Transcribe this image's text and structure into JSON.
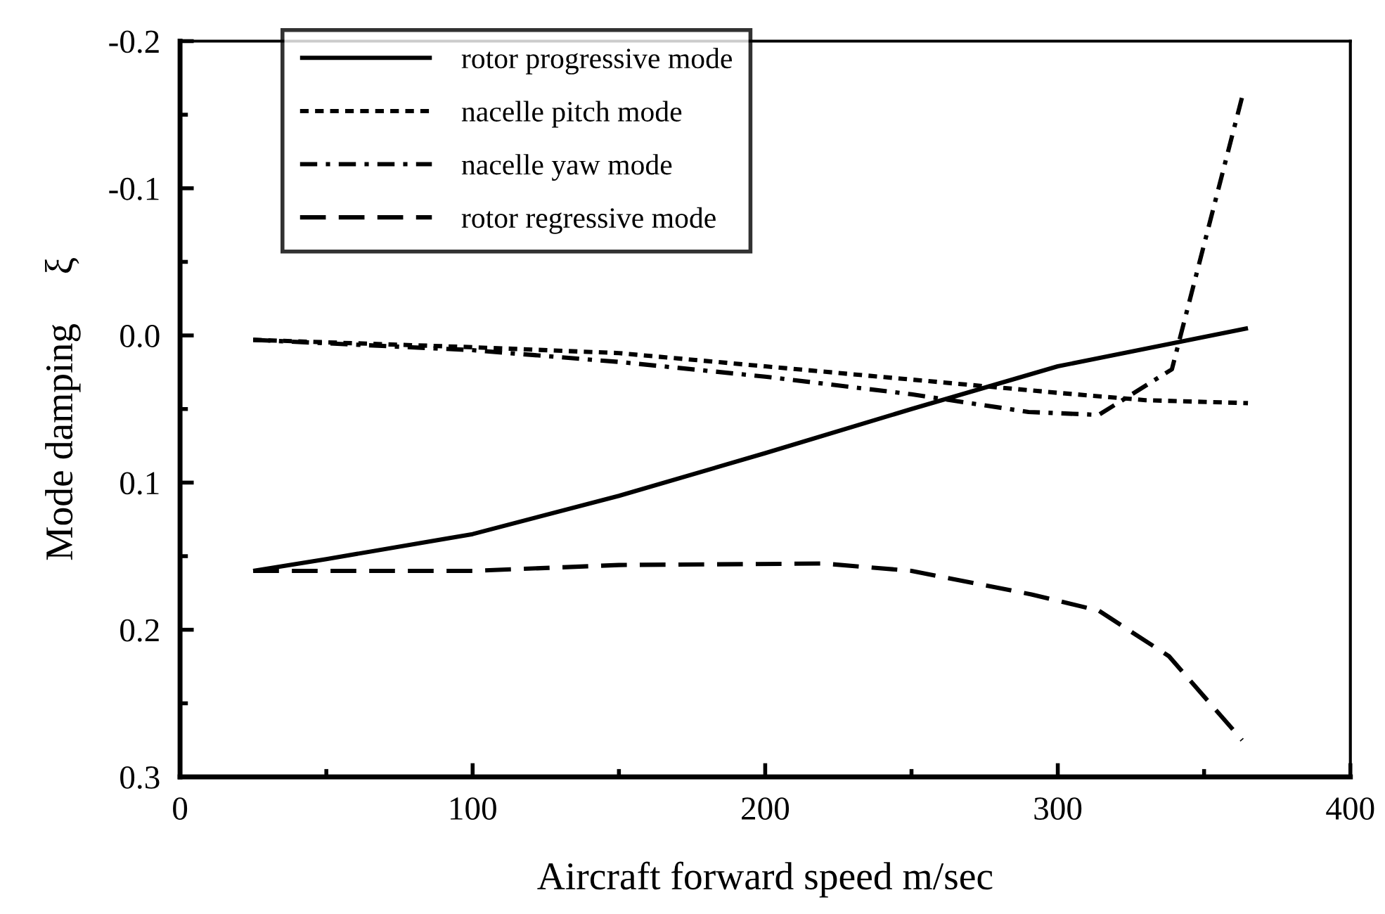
{
  "chart_data": {
    "type": "line",
    "xlabel": "Aircraft forward speed m/sec",
    "ylabel": "Mode damping     ξ",
    "xlim": [
      0,
      400
    ],
    "ylim": [
      0.3,
      -0.2
    ],
    "xticks": [
      0,
      {
        "value": 50,
        "label": null
      },
      100,
      {
        "value": 150,
        "label": null
      },
      200,
      {
        "value": 250,
        "label": null
      },
      300,
      {
        "value": 350,
        "label": null
      },
      400
    ],
    "yticks": [
      {
        "value": -0.2,
        "label": "-0.2"
      },
      {
        "value": -0.15,
        "label": null
      },
      {
        "value": -0.1,
        "label": "-0.1"
      },
      {
        "value": -0.05,
        "label": null
      },
      {
        "value": 0,
        "label": "0.0"
      },
      {
        "value": 0.05,
        "label": null
      },
      {
        "value": 0.1,
        "label": "0.1"
      },
      {
        "value": 0.15,
        "label": null
      },
      {
        "value": 0.2,
        "label": "0.2"
      },
      {
        "value": 0.25,
        "label": null
      },
      {
        "value": 0.3,
        "label": "0.3"
      }
    ],
    "grid": false,
    "legend": "top left",
    "marker": "none",
    "series": [
      {
        "name": "rotor progressive mode",
        "color": "#000000",
        "line_style": "solid",
        "x": [
          25,
          50,
          100,
          150,
          200,
          250,
          300,
          365
        ],
        "values": [
          0.16,
          0.152,
          0.135,
          0.109,
          0.08,
          0.05,
          0.021,
          -0.005
        ]
      },
      {
        "name": "nacelle pitch mode",
        "color": "#000000",
        "line_style": "dotted",
        "x": [
          25,
          100,
          150,
          200,
          250,
          300,
          330,
          365
        ],
        "values": [
          0.003,
          0.008,
          0.012,
          0.021,
          0.03,
          0.039,
          0.044,
          0.046
        ]
      },
      {
        "name": "nacelle yaw mode",
        "color": "#000000",
        "line_style": "dashdot",
        "x": [
          25,
          100,
          150,
          200,
          250,
          290,
          314,
          339,
          363
        ],
        "values": [
          0.003,
          0.01,
          0.018,
          0.028,
          0.04,
          0.052,
          0.054,
          0.023,
          -0.162
        ]
      },
      {
        "name": "rotor regressive mode",
        "color": "#000000",
        "line_style": "dashed",
        "x": [
          25,
          100,
          150,
          220,
          250,
          291,
          314,
          338,
          363
        ],
        "values": [
          0.16,
          0.16,
          0.156,
          0.155,
          0.16,
          0.176,
          0.187,
          0.218,
          0.275
        ]
      }
    ]
  }
}
